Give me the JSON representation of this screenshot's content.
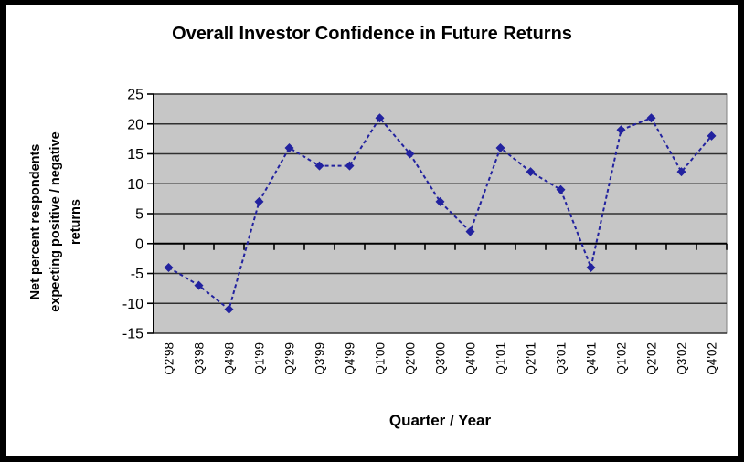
{
  "window": {
    "frame_color": "#000000",
    "background": "#FFFFFF"
  },
  "chart_data": {
    "type": "line",
    "title": "Overall Investor Confidence in Future Returns",
    "xlabel": "Quarter / Year",
    "ylabel": "Net percent respondents expecting positive / negative returns",
    "ylabel_lines": [
      "Net percent respondents",
      "expecting positive / negative",
      "returns"
    ],
    "categories": [
      "Q2'98",
      "Q3'98",
      "Q4'98",
      "Q1'99",
      "Q2'99",
      "Q3'99",
      "Q4'99",
      "Q1'00",
      "Q2'00",
      "Q3'00",
      "Q4'00",
      "Q1'01",
      "Q2'01",
      "Q3'01",
      "Q4'01",
      "Q1'02",
      "Q2'02",
      "Q3'02",
      "Q4'02"
    ],
    "values": [
      -4,
      -7,
      -11,
      7,
      16,
      13,
      13,
      21,
      15,
      7,
      2,
      16,
      12,
      9,
      -4,
      19,
      21,
      12,
      18
    ],
    "ylim": [
      -15,
      25
    ],
    "yticks": [
      25,
      20,
      15,
      10,
      5,
      0,
      -5,
      -10,
      -15
    ],
    "ytick_step": 5,
    "grid": true,
    "legend": false,
    "line_style": "dashed",
    "marker": "diamond",
    "colors": {
      "series": "#22229F",
      "plot_bg": "#C6C6C6",
      "gridline": "#303030",
      "plot_border": "#808080",
      "axis": "#000000",
      "text": "#000000"
    }
  }
}
